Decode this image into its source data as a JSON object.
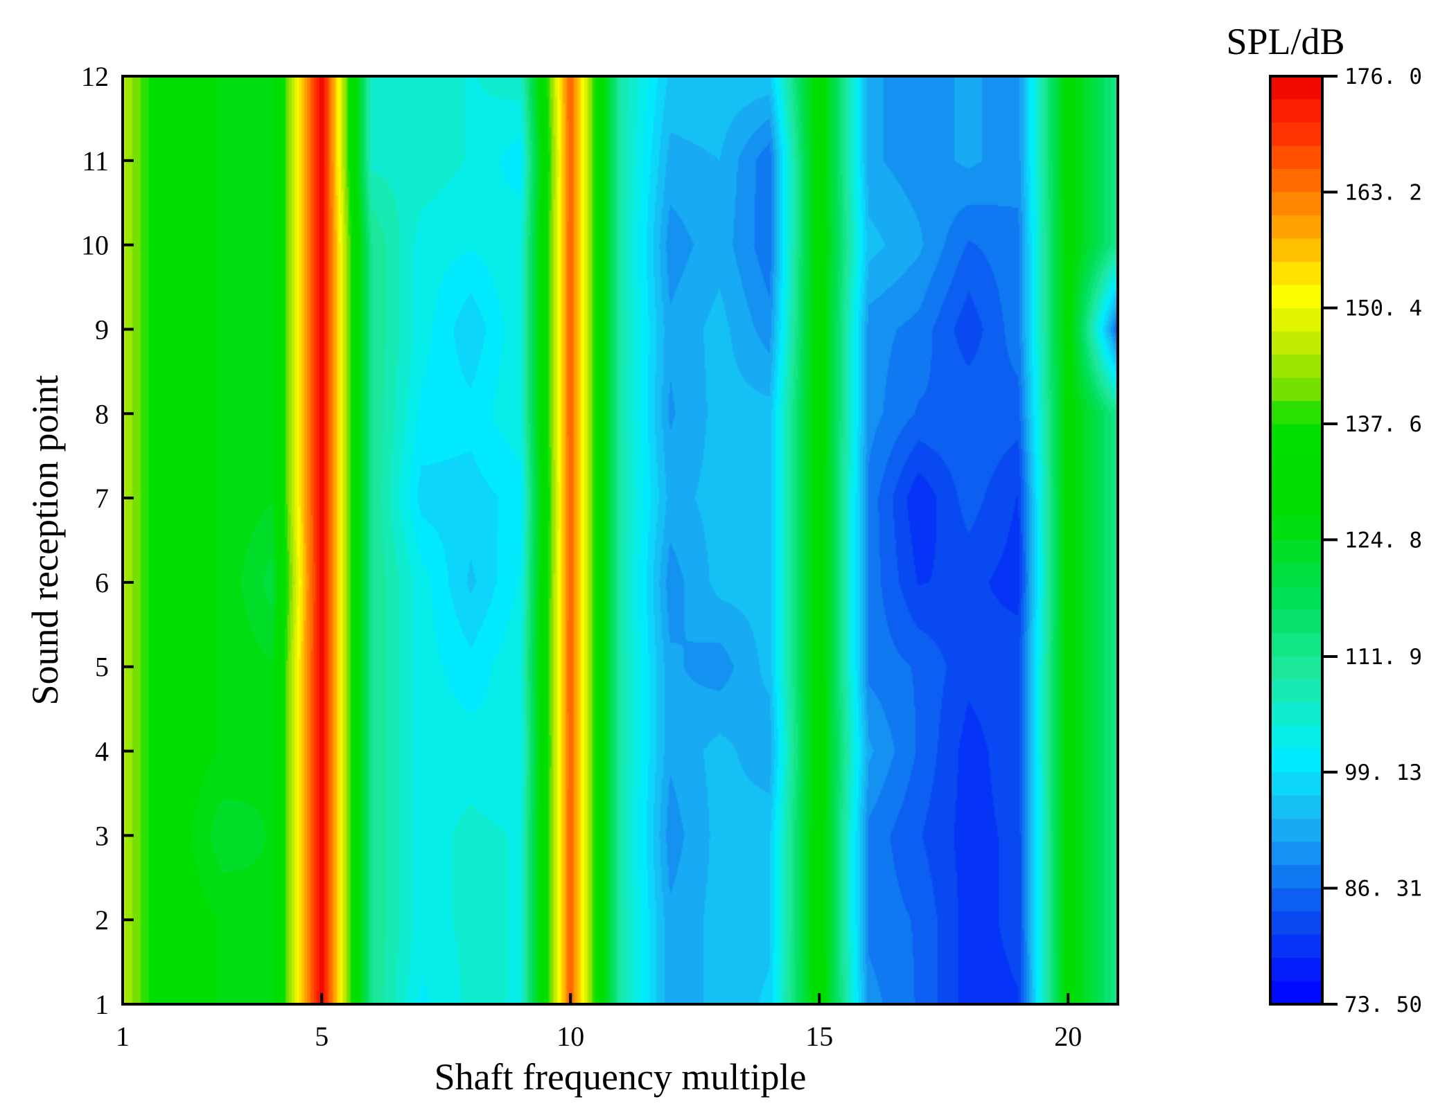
{
  "chart_data": {
    "type": "heatmap",
    "title": "",
    "xlabel": "Shaft frequency multiple",
    "ylabel": "Sound reception point",
    "x": [
      1,
      2,
      3,
      4,
      5,
      6,
      7,
      8,
      9,
      10,
      11,
      12,
      13,
      14,
      15,
      16,
      17,
      18,
      19,
      20,
      21
    ],
    "y": [
      1,
      2,
      3,
      4,
      5,
      6,
      7,
      8,
      9,
      10,
      11,
      12
    ],
    "xlim": [
      1,
      21
    ],
    "ylim": [
      1,
      12
    ],
    "xticks": [
      1,
      5,
      10,
      15,
      20
    ],
    "xtick_labels": [
      "1",
      "5",
      "10",
      "15",
      "20"
    ],
    "yticks": [
      1,
      2,
      3,
      4,
      5,
      6,
      7,
      8,
      9,
      10,
      11,
      12
    ],
    "ytick_labels": [
      "1",
      "2",
      "3",
      "4",
      "5",
      "6",
      "7",
      "8",
      "9",
      "10",
      "11",
      "12"
    ],
    "z": [
      [
        146,
        130,
        127,
        125,
        176,
        112,
        101,
        105,
        104,
        166,
        109,
        92,
        95,
        97,
        132,
        90,
        86,
        80,
        81,
        130,
        112
      ],
      [
        146,
        130,
        127,
        125,
        176,
        112,
        103,
        105,
        104,
        166,
        109,
        92,
        95,
        96,
        132,
        88,
        86,
        80,
        82,
        130,
        112
      ],
      [
        146,
        130,
        123,
        125,
        176,
        112,
        103,
        105,
        104,
        166,
        109,
        90,
        95,
        96,
        132,
        88,
        84,
        80,
        82,
        130,
        112
      ],
      [
        146,
        130,
        127,
        125,
        176,
        112,
        103,
        103,
        102,
        166,
        109,
        92,
        95,
        92,
        132,
        92,
        86,
        80,
        83,
        130,
        112
      ],
      [
        146,
        130,
        127,
        125,
        176,
        112,
        103,
        100,
        104,
        166,
        109,
        92,
        90,
        95,
        132,
        88,
        86,
        82,
        83,
        130,
        112
      ],
      [
        146,
        130,
        127,
        121,
        176,
        112,
        103,
        96,
        102,
        166,
        109,
        90,
        95,
        95,
        132,
        88,
        81,
        82,
        80,
        130,
        112
      ],
      [
        146,
        130,
        127,
        125,
        176,
        112,
        98,
        98,
        100,
        166,
        109,
        93,
        95,
        95,
        132,
        88,
        79,
        85,
        81,
        130,
        112
      ],
      [
        146,
        130,
        127,
        125,
        176,
        112,
        101,
        100,
        104,
        166,
        109,
        91,
        95,
        95,
        132,
        90,
        86,
        86,
        85,
        130,
        112
      ],
      [
        146,
        130,
        127,
        125,
        176,
        112,
        103,
        97,
        104,
        166,
        109,
        92,
        95,
        90,
        132,
        90,
        88,
        82,
        88,
        130,
        85
      ],
      [
        146,
        130,
        127,
        125,
        176,
        112,
        103,
        102,
        104,
        166,
        109,
        90,
        93,
        87,
        132,
        95,
        92,
        86,
        88,
        130,
        112
      ],
      [
        146,
        130,
        127,
        125,
        176,
        106,
        106,
        104,
        100,
        166,
        109,
        93,
        94,
        87,
        132,
        92,
        90,
        92,
        90,
        130,
        112
      ],
      [
        146,
        130,
        127,
        125,
        176,
        106,
        106,
        104,
        106,
        166,
        109,
        96,
        96,
        96,
        132,
        92,
        90,
        92,
        90,
        130,
        112
      ]
    ],
    "colorbar": {
      "title": "SPL/dB",
      "min": 73.5,
      "max": 176.0,
      "ticks": [
        176.0,
        163.2,
        150.4,
        137.6,
        124.8,
        111.9,
        99.13,
        86.31,
        73.5
      ],
      "tick_labels": [
        "176. 0",
        "163. 2",
        "150. 4",
        "137. 6",
        "124. 8",
        "111. 9",
        "99. 13",
        "86. 31",
        "73. 50"
      ],
      "levels": 40,
      "colormap_stops": [
        {
          "v": 73.5,
          "color": "#0000ff"
        },
        {
          "v": 84.0,
          "color": "#0a55f0"
        },
        {
          "v": 94.0,
          "color": "#1ab7f2"
        },
        {
          "v": 101.0,
          "color": "#00f0ff"
        },
        {
          "v": 110.0,
          "color": "#1ee8a0"
        },
        {
          "v": 118.0,
          "color": "#00e05a"
        },
        {
          "v": 128.0,
          "color": "#00dd00"
        },
        {
          "v": 137.6,
          "color": "#00e000"
        },
        {
          "v": 141.0,
          "color": "#70e000"
        },
        {
          "v": 148.0,
          "color": "#d8f000"
        },
        {
          "v": 152.0,
          "color": "#ffff00"
        },
        {
          "v": 158.0,
          "color": "#ffb000"
        },
        {
          "v": 164.0,
          "color": "#ff7000"
        },
        {
          "v": 170.0,
          "color": "#ff3000"
        },
        {
          "v": 176.0,
          "color": "#ee0000"
        }
      ]
    },
    "grid": false,
    "legend": "colorbar-right"
  }
}
